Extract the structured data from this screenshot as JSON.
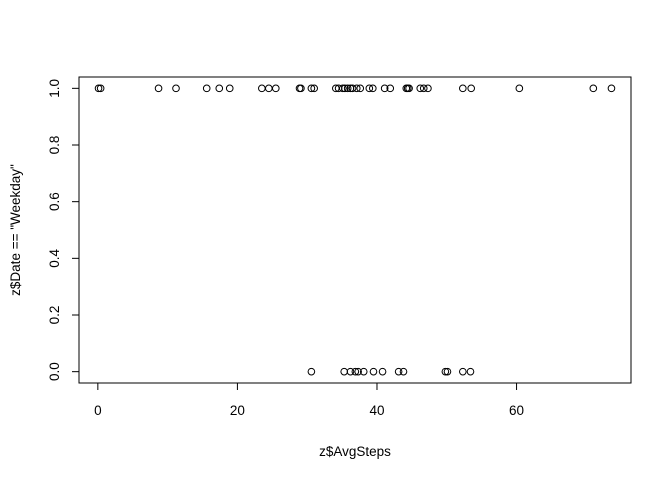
{
  "chart_data": {
    "type": "scatter",
    "title": "",
    "xlabel": "z$AvgSteps",
    "ylabel": "z$Date == \"Weekday\"",
    "xlim": [
      -2.7,
      76.4
    ],
    "ylim": [
      -0.04,
      1.04
    ],
    "x_ticks": [
      0,
      20,
      40,
      60
    ],
    "y_ticks": [
      0.0,
      0.2,
      0.4,
      0.6,
      0.8,
      1.0
    ],
    "x_tick_labels": [
      "0",
      "20",
      "40",
      "60"
    ],
    "y_tick_labels": [
      "0.0",
      "0.2",
      "0.4",
      "0.6",
      "0.8",
      "1.0"
    ],
    "grid": false,
    "marker": "open-circle",
    "series": [
      {
        "x": [
          0.1,
          0.4,
          8.7,
          11.2,
          15.6,
          17.4,
          18.9,
          23.5,
          24.5,
          25.5,
          28.9,
          29.1,
          30.6,
          31.0,
          34.1,
          34.5,
          35.1,
          35.4,
          35.8,
          36.2,
          36.5,
          37.1,
          37.6,
          38.9,
          39.4,
          41.1,
          41.9,
          44.2,
          44.4,
          44.6,
          46.2,
          46.7,
          47.3,
          52.3,
          53.5,
          60.4,
          71.0,
          73.6
        ],
        "y": [
          1,
          1,
          1,
          1,
          1,
          1,
          1,
          1,
          1,
          1,
          1,
          1,
          1,
          1,
          1,
          1,
          1,
          1,
          1,
          1,
          1,
          1,
          1,
          1,
          1,
          1,
          1,
          1,
          1,
          1,
          1,
          1,
          1,
          1,
          1,
          1,
          1,
          1
        ]
      },
      {
        "x": [
          30.6,
          35.3,
          36.2,
          36.9,
          37.3,
          38.1,
          39.5,
          40.8,
          43.1,
          43.8,
          49.8,
          50.1,
          52.3,
          53.4
        ],
        "y": [
          0,
          0,
          0,
          0,
          0,
          0,
          0,
          0,
          0,
          0,
          0,
          0,
          0,
          0
        ]
      }
    ]
  }
}
